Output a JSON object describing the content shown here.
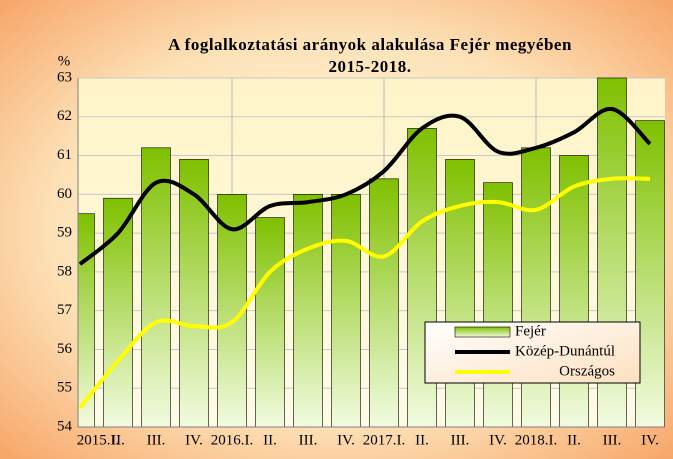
{
  "chart_data": {
    "type": "bar",
    "title": "A foglalkoztatási arányok alakulása Fejér megyében",
    "subtitle": "2015-2018.",
    "y_label": "%",
    "categories": [
      "2015.I.",
      "II.",
      "III.",
      "IV.",
      "2016.I.",
      "II.",
      "III.",
      "IV.",
      "2017.I.",
      "II.",
      "III.",
      "IV.",
      "2018.I.",
      "II.",
      "III.",
      "IV."
    ],
    "series": [
      {
        "name": "Fejér",
        "type": "bar",
        "color": "#8ccc10",
        "values": [
          59.5,
          59.9,
          61.2,
          60.9,
          60.0,
          59.4,
          60.0,
          60.0,
          60.4,
          61.7,
          60.9,
          60.3,
          61.2,
          61.0,
          63.0,
          61.9
        ]
      },
      {
        "name": "Közép-Dunántúl",
        "type": "line",
        "color": "#000000",
        "values": [
          58.2,
          59.0,
          60.3,
          60.0,
          59.1,
          59.7,
          59.8,
          60.0,
          60.6,
          61.7,
          62.0,
          61.1,
          61.2,
          61.6,
          62.2,
          61.3
        ]
      },
      {
        "name": "Országos",
        "type": "line",
        "color": "#ffff00",
        "values": [
          54.5,
          55.7,
          56.7,
          56.6,
          56.7,
          58.0,
          58.6,
          58.8,
          58.4,
          59.3,
          59.7,
          59.8,
          59.6,
          60.2,
          60.4,
          60.4
        ]
      }
    ],
    "ylim": [
      54,
      63
    ],
    "yticks": [
      54,
      55,
      56,
      57,
      58,
      59,
      60,
      61,
      62,
      63
    ],
    "grid": true,
    "legend": "lower right"
  }
}
